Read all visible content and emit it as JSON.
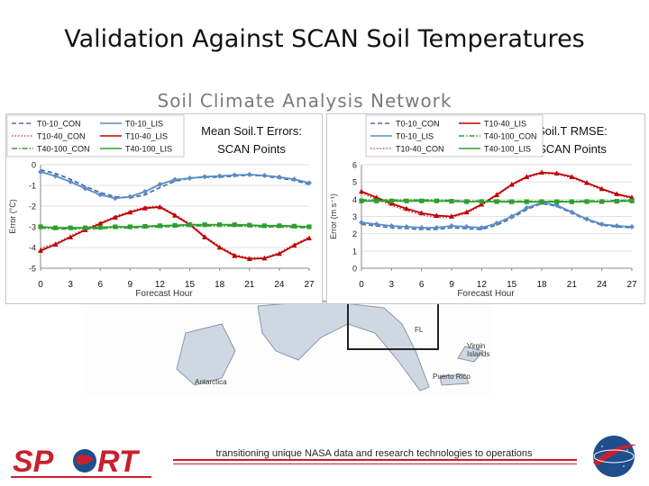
{
  "slide": {
    "title": "Validation Against SCAN Soil Temperatures",
    "banner": "Soil Climate Analysis Network",
    "tagline": "transitioning unique NASA data and research technologies to operations",
    "map_labels": [
      "Virgin Islands",
      "Puerto Rico",
      "Antarctica",
      "FL"
    ],
    "colors": {
      "footer_red": "#c21f2b",
      "logo_red": "#c8202e",
      "logo_blue": "#1f4e8c"
    },
    "logos": [
      "sport-logo",
      "nasa-logo"
    ]
  },
  "chart_data": [
    {
      "type": "line",
      "title_lines": [
        "Mean Soil.T Errors:",
        "SCAN Points"
      ],
      "xlabel": "Forecast Hour",
      "ylabel": "Error (°C)",
      "x": [
        0,
        1.5,
        3,
        4.5,
        6,
        7.5,
        9,
        10.5,
        12,
        13.5,
        15,
        16.5,
        18,
        19.5,
        21,
        22.5,
        24,
        25.5,
        27
      ],
      "xticks": [
        0,
        3,
        6,
        9,
        12,
        15,
        18,
        21,
        24,
        27
      ],
      "yticks": [
        0,
        -1,
        -2,
        -3,
        -4,
        -5
      ],
      "xlim": [
        0,
        27
      ],
      "ylim": [
        -5,
        0
      ],
      "legend": "top-left",
      "series": [
        {
          "name": "T0-10_CON",
          "color": "#4a6fa5",
          "dash": "dash",
          "marker": "none",
          "values": [
            -0.25,
            -0.42,
            -0.7,
            -1.05,
            -1.35,
            -1.55,
            -1.6,
            -1.45,
            -1.1,
            -0.8,
            -0.65,
            -0.6,
            -0.6,
            -0.55,
            -0.5,
            -0.55,
            -0.65,
            -0.75,
            -0.95
          ]
        },
        {
          "name": "T0-10_LIS",
          "color": "#5b8cc8",
          "dash": "solid",
          "marker": "diamond",
          "values": [
            -0.35,
            -0.55,
            -0.82,
            -1.15,
            -1.45,
            -1.62,
            -1.55,
            -1.3,
            -0.95,
            -0.72,
            -0.65,
            -0.58,
            -0.55,
            -0.5,
            -0.48,
            -0.52,
            -0.6,
            -0.7,
            -0.88
          ]
        },
        {
          "name": "T10-40_CON",
          "color": "#c0504d",
          "dash": "dot",
          "marker": "none",
          "values": [
            -4.05,
            -3.8,
            -3.45,
            -3.1,
            -2.8,
            -2.5,
            -2.25,
            -2.05,
            -2.0,
            -2.4,
            -2.85,
            -3.45,
            -3.95,
            -4.35,
            -4.5,
            -4.5,
            -4.25,
            -3.85,
            -3.5
          ]
        },
        {
          "name": "T10-40_LIS",
          "color": "#c00000",
          "dash": "solid",
          "marker": "triangle",
          "values": [
            -4.15,
            -3.85,
            -3.5,
            -3.15,
            -2.85,
            -2.55,
            -2.3,
            -2.1,
            -2.05,
            -2.45,
            -2.9,
            -3.5,
            -4.0,
            -4.4,
            -4.55,
            -4.52,
            -4.3,
            -3.9,
            -3.55
          ]
        },
        {
          "name": "T40-100_CON",
          "color": "#3a9a3a",
          "dash": "dashdot",
          "marker": "none",
          "values": [
            -3.05,
            -3.1,
            -3.1,
            -3.1,
            -3.08,
            -3.05,
            -3.05,
            -3.02,
            -3.0,
            -2.98,
            -2.95,
            -2.95,
            -2.95,
            -2.95,
            -2.98,
            -3.0,
            -3.0,
            -3.02,
            -3.05
          ]
        },
        {
          "name": "T40-100_LIS",
          "color": "#2ca02c",
          "dash": "solid",
          "marker": "square",
          "values": [
            -3.0,
            -3.05,
            -3.05,
            -3.05,
            -3.03,
            -3.0,
            -3.0,
            -2.98,
            -2.95,
            -2.93,
            -2.9,
            -2.9,
            -2.9,
            -2.9,
            -2.92,
            -2.95,
            -2.95,
            -2.97,
            -3.0
          ]
        }
      ]
    },
    {
      "type": "line",
      "title_lines": [
        "Soil.T RMSE:",
        "SCAN Points"
      ],
      "xlabel": "Forecast Hour",
      "ylabel": "Error (m s⁻¹)",
      "x": [
        0,
        1.5,
        3,
        4.5,
        6,
        7.5,
        9,
        10.5,
        12,
        13.5,
        15,
        16.5,
        18,
        19.5,
        21,
        22.5,
        24,
        25.5,
        27
      ],
      "xticks": [
        0,
        3,
        6,
        9,
        12,
        15,
        18,
        21,
        24,
        27
      ],
      "yticks": [
        0,
        1,
        2,
        3,
        4,
        5,
        6
      ],
      "xlim": [
        0,
        27
      ],
      "ylim": [
        0,
        6
      ],
      "legend": "top-left",
      "series": [
        {
          "name": "T0-10_CON",
          "color": "#4a6fa5",
          "dash": "dash",
          "marker": "none",
          "values": [
            2.55,
            2.45,
            2.35,
            2.3,
            2.25,
            2.25,
            2.35,
            2.3,
            2.25,
            2.5,
            2.9,
            3.4,
            3.75,
            3.6,
            3.2,
            2.8,
            2.5,
            2.4,
            2.35
          ]
        },
        {
          "name": "T0-10_LIS",
          "color": "#5b8cc8",
          "dash": "solid",
          "marker": "diamond",
          "values": [
            2.65,
            2.55,
            2.45,
            2.4,
            2.35,
            2.35,
            2.45,
            2.4,
            2.35,
            2.6,
            3.0,
            3.5,
            3.8,
            3.65,
            3.25,
            2.85,
            2.55,
            2.45,
            2.4
          ]
        },
        {
          "name": "T10-40_CON",
          "color": "#c0504d",
          "dash": "dot",
          "marker": "none",
          "values": [
            4.35,
            4.0,
            3.65,
            3.35,
            3.1,
            2.95,
            2.95,
            3.2,
            3.65,
            4.2,
            4.8,
            5.25,
            5.5,
            5.45,
            5.25,
            4.9,
            4.55,
            4.25,
            4.05
          ]
        },
        {
          "name": "T10-40_LIS",
          "color": "#c00000",
          "dash": "solid",
          "marker": "triangle",
          "values": [
            4.45,
            4.1,
            3.75,
            3.45,
            3.2,
            3.05,
            3.0,
            3.25,
            3.7,
            4.25,
            4.85,
            5.3,
            5.55,
            5.5,
            5.3,
            4.95,
            4.6,
            4.3,
            4.1
          ]
        },
        {
          "name": "T40-100_CON",
          "color": "#3a9a3a",
          "dash": "dashdot",
          "marker": "none",
          "values": [
            3.95,
            3.95,
            3.95,
            3.95,
            3.95,
            3.95,
            3.92,
            3.9,
            3.9,
            3.9,
            3.88,
            3.88,
            3.88,
            3.88,
            3.88,
            3.9,
            3.9,
            3.92,
            3.95
          ]
        },
        {
          "name": "T40-100_LIS",
          "color": "#2ca02c",
          "dash": "solid",
          "marker": "square",
          "values": [
            3.9,
            3.9,
            3.9,
            3.9,
            3.9,
            3.9,
            3.88,
            3.86,
            3.86,
            3.86,
            3.85,
            3.85,
            3.85,
            3.85,
            3.85,
            3.86,
            3.86,
            3.88,
            3.9
          ]
        }
      ]
    }
  ]
}
